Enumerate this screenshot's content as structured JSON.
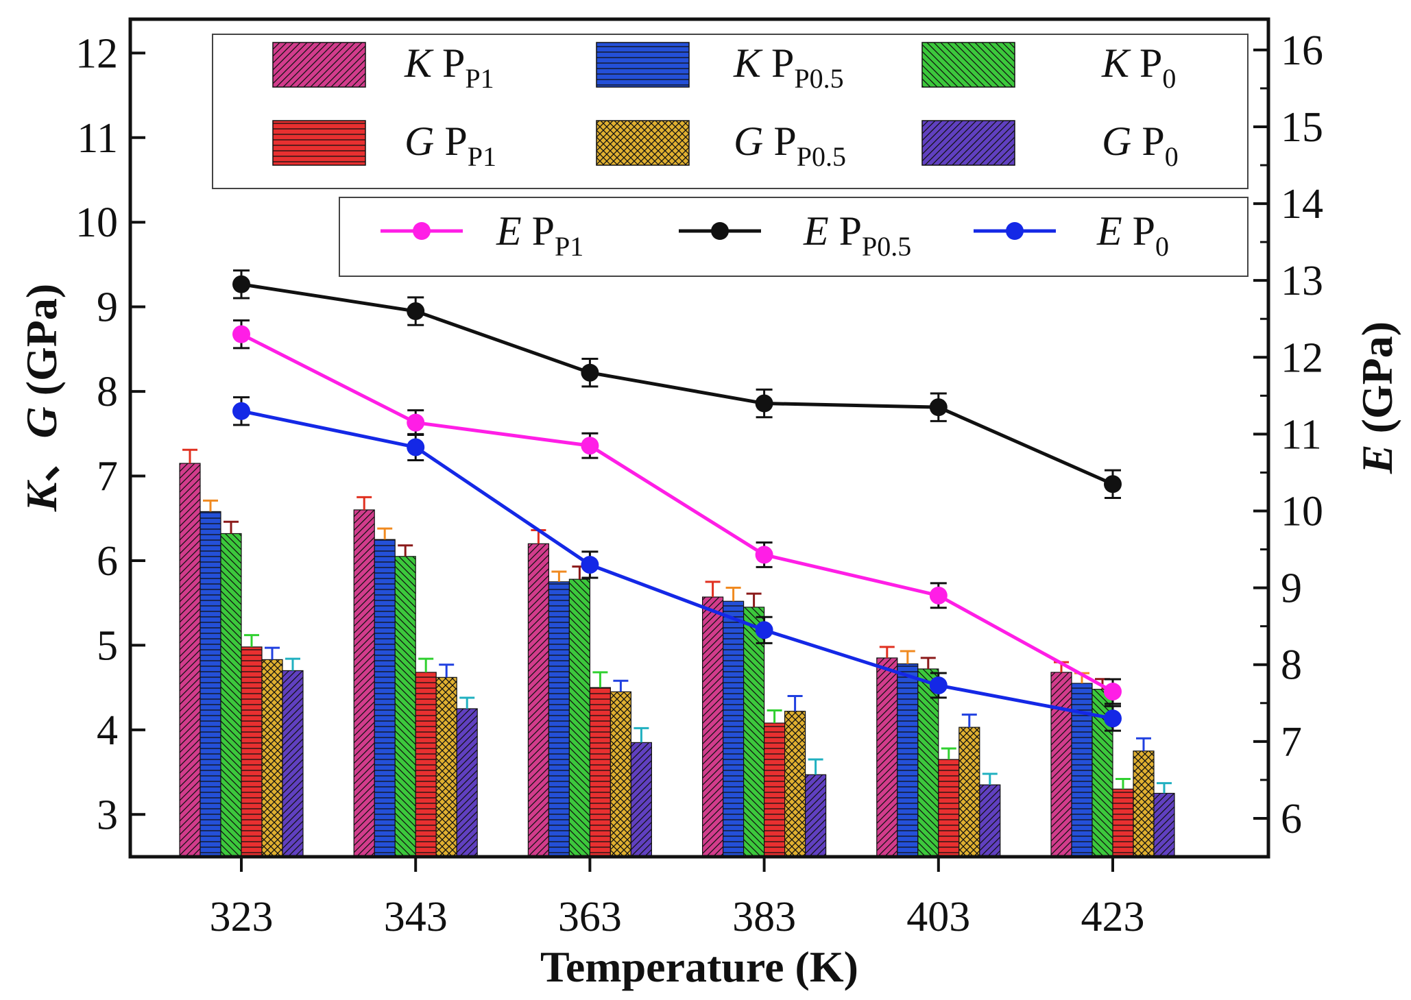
{
  "chart_data": {
    "type": "bar",
    "xlabel": "Temperature (K)",
    "ylabel_left": {
      "parts": [
        "K",
        "、",
        "G",
        " (GPa)"
      ]
    },
    "ylabel_right": {
      "parts": [
        "E",
        " (GPa)"
      ]
    },
    "categories": [
      "323",
      "343",
      "363",
      "383",
      "403",
      "423"
    ],
    "ylim_left": [
      2.5,
      12.4
    ],
    "ylim_right": [
      5.5,
      16.4
    ],
    "yticks_left": [
      3,
      4,
      5,
      6,
      7,
      8,
      9,
      10,
      11,
      12
    ],
    "yticks_right": [
      6,
      7,
      8,
      9,
      10,
      11,
      12,
      13,
      14,
      15,
      16
    ],
    "bar_series": [
      {
        "name": "K P_P1",
        "prop": "K",
        "base": "P",
        "sub": "P1",
        "color": "#d23c8c",
        "error_color": "#e03020",
        "pattern": "diag-right",
        "values": [
          7.15,
          6.6,
          6.2,
          5.57,
          4.85,
          4.68
        ],
        "errors": [
          0.16,
          0.15,
          0.16,
          0.18,
          0.13,
          0.12
        ]
      },
      {
        "name": "K P_P0.5",
        "prop": "K",
        "base": "P",
        "sub": "P0.5",
        "color": "#2450d8",
        "error_color": "#f08a20",
        "pattern": "horizontal",
        "values": [
          6.58,
          6.25,
          5.75,
          5.52,
          4.78,
          4.55
        ],
        "errors": [
          0.13,
          0.13,
          0.12,
          0.16,
          0.15,
          0.12
        ]
      },
      {
        "name": "K P_0",
        "prop": "K",
        "base": "P",
        "sub": "0",
        "color": "#3cc83c",
        "error_color": "#8b1a1a",
        "pattern": "diag-left",
        "values": [
          6.32,
          6.05,
          5.78,
          5.45,
          4.72,
          4.48
        ],
        "errors": [
          0.14,
          0.13,
          0.15,
          0.16,
          0.13,
          0.12
        ]
      },
      {
        "name": "G P_P1",
        "prop": "G",
        "base": "P",
        "sub": "P1",
        "color": "#e83030",
        "error_color": "#30d030",
        "pattern": "horizontal",
        "values": [
          4.98,
          4.68,
          4.5,
          4.08,
          3.65,
          3.3
        ],
        "errors": [
          0.14,
          0.16,
          0.18,
          0.15,
          0.13,
          0.12
        ]
      },
      {
        "name": "G P_P0.5",
        "prop": "G",
        "base": "P",
        "sub": "P0.5",
        "color": "#e0b030",
        "error_color": "#2040e0",
        "pattern": "crosshatch",
        "values": [
          4.83,
          4.62,
          4.45,
          4.22,
          4.03,
          3.75
        ],
        "errors": [
          0.14,
          0.15,
          0.13,
          0.18,
          0.15,
          0.15
        ]
      },
      {
        "name": "G P_0",
        "prop": "G",
        "base": "P",
        "sub": "0",
        "color": "#6040c0",
        "error_color": "#20b0c0",
        "pattern": "diag-right",
        "values": [
          4.7,
          4.25,
          3.85,
          3.47,
          3.35,
          3.25
        ],
        "errors": [
          0.14,
          0.13,
          0.17,
          0.18,
          0.13,
          0.12
        ]
      }
    ],
    "line_series": [
      {
        "name": "E P_P1",
        "prop": "E",
        "base": "P",
        "sub": "P1",
        "color": "#ff1ee6",
        "values": [
          12.3,
          11.15,
          10.85,
          9.43,
          8.9,
          7.65
        ],
        "errors": [
          0.18,
          0.16,
          0.16,
          0.16,
          0.16,
          0.16
        ]
      },
      {
        "name": "E P_P0.5",
        "prop": "E",
        "base": "P",
        "sub": "P0.5",
        "color": "#111111",
        "values": [
          12.95,
          12.6,
          11.8,
          11.4,
          11.35,
          10.35
        ],
        "errors": [
          0.18,
          0.18,
          0.18,
          0.18,
          0.18,
          0.18
        ]
      },
      {
        "name": "E P_0",
        "prop": "E",
        "base": "P",
        "sub": "0",
        "color": "#1428e6",
        "values": [
          11.3,
          10.83,
          9.3,
          8.45,
          7.73,
          7.3
        ],
        "errors": [
          0.18,
          0.17,
          0.17,
          0.17,
          0.16,
          0.16
        ]
      }
    ]
  }
}
